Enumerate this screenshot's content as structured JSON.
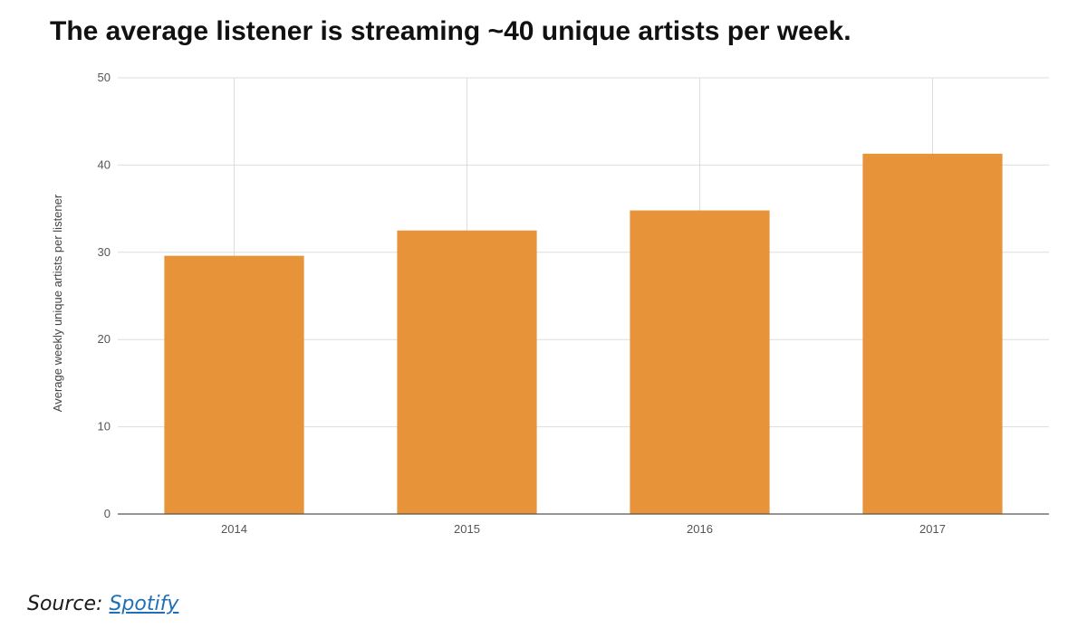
{
  "chart_data": {
    "type": "bar",
    "title": "The average listener is streaming ~40 unique artists per week.",
    "xlabel": "",
    "ylabel": "Average weekly unique artists per listener",
    "categories": [
      "2014",
      "2015",
      "2016",
      "2017"
    ],
    "values": [
      29.6,
      32.5,
      34.8,
      41.3
    ],
    "ylim": [
      0,
      50
    ],
    "yticks": [
      0,
      10,
      20,
      30,
      40,
      50
    ],
    "grid": true,
    "bar_color": "#E6933A",
    "gridline_color": "#DDDDDD",
    "axis_color": "#555555"
  },
  "source": {
    "label": "Source:",
    "link_text": "Spotify"
  }
}
